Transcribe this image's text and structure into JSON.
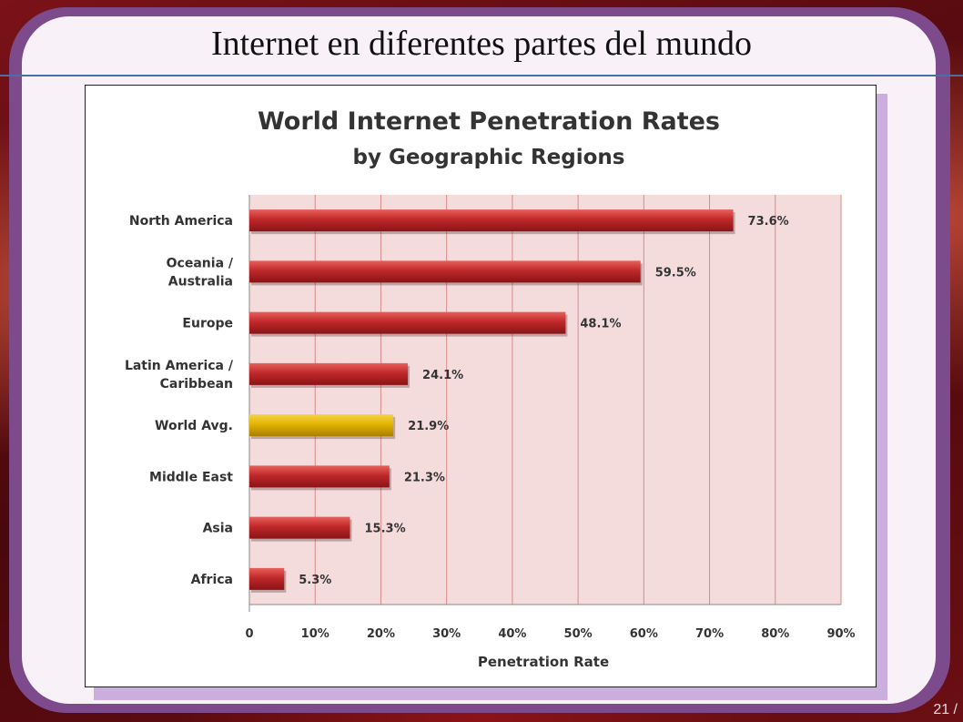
{
  "slide": {
    "title": "Internet en diferentes partes del mundo",
    "page_number": "21 /"
  },
  "colors": {
    "bar": "#c0282a",
    "bar_highlight": "#e3b400",
    "plot_bg": "#f5dcdc",
    "grid": "#d98a8a"
  },
  "chart_data": {
    "type": "bar",
    "orientation": "horizontal",
    "title": "World Internet Penetration Rates",
    "subtitle": "by Geographic Regions",
    "xlabel": "Penetration Rate",
    "ylabel": "",
    "categories": [
      [
        "North America"
      ],
      [
        "Oceania  /",
        "Australia"
      ],
      [
        "Europe"
      ],
      [
        "Latin America /",
        "Caribbean"
      ],
      [
        "World Avg."
      ],
      [
        "Middle East"
      ],
      [
        "Asia"
      ],
      [
        "Africa"
      ]
    ],
    "values": [
      73.6,
      59.5,
      48.1,
      24.1,
      21.9,
      21.3,
      15.3,
      5.3
    ],
    "value_labels": [
      "73.6%",
      "59.5%",
      "48.1%",
      "24.1%",
      "21.9%",
      "21.3%",
      "15.3%",
      "5.3%"
    ],
    "highlight": "World Avg.",
    "xlim": [
      0,
      90
    ],
    "xticks": [
      "0",
      "10%",
      "20%",
      "30%",
      "40%",
      "50%",
      "60%",
      "70%",
      "80%",
      "90%"
    ],
    "grid": true
  }
}
